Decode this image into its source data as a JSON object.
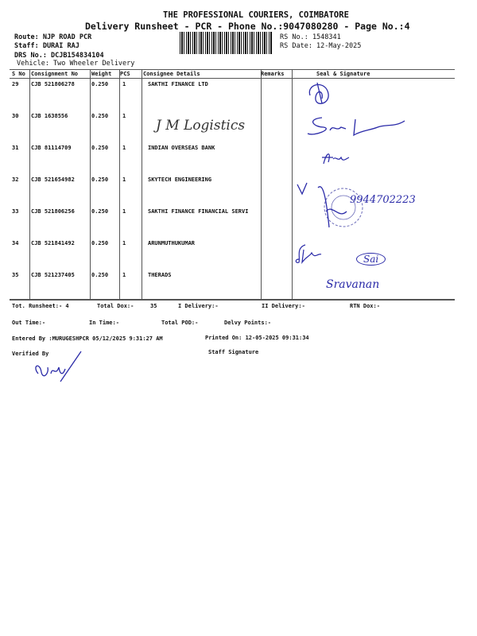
{
  "header": {
    "company": "THE PROFESSIONAL COURIERS, COIMBATORE",
    "subtitle": "Delivery Runsheet - PCR - Phone No.:9047080280 - Page No.:4",
    "route": "Route: NJP ROAD  PCR",
    "staff": "Staff: DURAI  RAJ",
    "drs": "DRS No.: DCJB154834104",
    "vehicle": "Vehicle: Two Wheeler Delivery",
    "rs_no": "RS No.: 1548341",
    "rs_date": "RS Date: 12-May-2025"
  },
  "columns": [
    "S No",
    "Consignment No",
    "Weight",
    "PCS",
    "Consignee Details",
    "Remarks",
    "Seal & Signature"
  ],
  "rows": [
    {
      "sno": "29",
      "cons": "CJB 521806278",
      "weight": "0.250",
      "pcs": "1",
      "consignee": "SAKTHI FINANCE LTD"
    },
    {
      "sno": "30",
      "cons": "CJB 1638556",
      "weight": "0.250",
      "pcs": "1",
      "consignee": "",
      "handwritten": "J M Logistics"
    },
    {
      "sno": "31",
      "cons": "CJB 81114709",
      "weight": "0.250",
      "pcs": "1",
      "consignee": "INDIAN OVERSEAS BANK"
    },
    {
      "sno": "32",
      "cons": "CJB 521654982",
      "weight": "0.250",
      "pcs": "1",
      "consignee": "SKYTECH ENGINEERING"
    },
    {
      "sno": "33",
      "cons": "CJB 521806256",
      "weight": "0.250",
      "pcs": "1",
      "consignee": "SAKTHI FINANCE FINANCIAL SERVI"
    },
    {
      "sno": "34",
      "cons": "CJB 521841492",
      "weight": "0.250",
      "pcs": "1",
      "consignee": "ARUNMUTHUKUMAR"
    },
    {
      "sno": "35",
      "cons": "CJB 521237405",
      "weight": "0.250",
      "pcs": "1",
      "consignee": "THERADS"
    }
  ],
  "signatures": {
    "row32": "9944702223",
    "row34": "Sai",
    "row35": "Sravanan"
  },
  "footer": {
    "tot_runsheet": "Tot. Runsheet:- 4",
    "total_dox": "Total Dox:-",
    "total_dox_val": "35",
    "i_delivery": "I Delivery:-",
    "ii_delivery": "II Delivery:-",
    "rtn_dox": "RTN Dox:-",
    "out_time": "Out Time:-",
    "in_time": "In Time:-",
    "total_pod": "Total POD:-",
    "delvy_points": "Delvy Points:-",
    "entered_by": "Entered By :MURUGESHPCR 05/12/2025 9:31:27 AM",
    "printed_on": "Printed On: 12-05-2025 09:31:34",
    "verified_by": "Verified By",
    "staff_signature": "Staff Signature"
  }
}
